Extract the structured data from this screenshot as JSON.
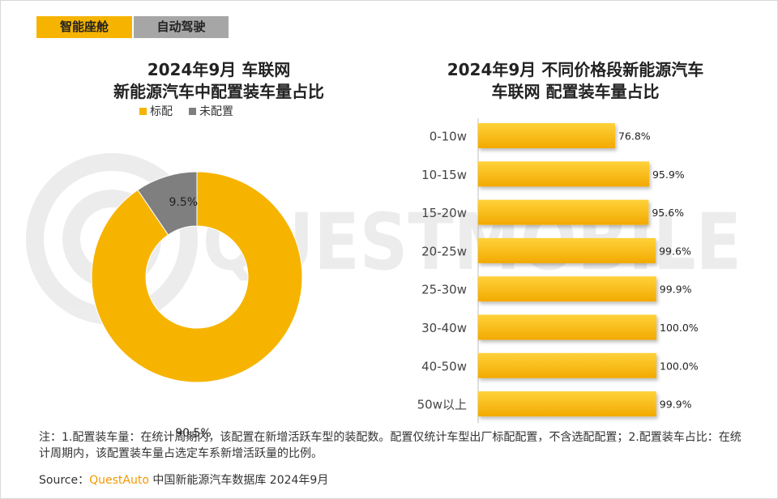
{
  "tabs": [
    {
      "label": "智能座舱",
      "active": true
    },
    {
      "label": "自动驾驶",
      "active": false
    }
  ],
  "watermark": "QUESTMOBILE",
  "colors": {
    "accent": "#f6b400",
    "gray": "#7f7f7f",
    "tab_inactive": "#a6a6a6",
    "brand": "#f39800"
  },
  "chart_data": [
    {
      "type": "pie",
      "title_line1": "2024年9月 车联网",
      "title_line2": "新能源汽车中配置装车量占比",
      "legend_position": "top",
      "slices": [
        {
          "name": "标配",
          "value": 90.5,
          "label": "90.5%",
          "color": "#f6b400"
        },
        {
          "name": "未配置",
          "value": 9.5,
          "label": "9.5%",
          "color": "#7f7f7f"
        }
      ]
    },
    {
      "type": "bar",
      "orientation": "horizontal",
      "title_line1": "2024年9月 不同价格段新能源汽车",
      "title_line2": "车联网 配置装车量占比",
      "categories": [
        "0-10w",
        "10-15w",
        "15-20w",
        "20-25w",
        "25-30w",
        "30-40w",
        "40-50w",
        "50w以上"
      ],
      "values": [
        76.8,
        95.9,
        95.6,
        99.6,
        99.9,
        100.0,
        100.0,
        99.9
      ],
      "labels": [
        "76.8%",
        "95.9%",
        "95.6%",
        "99.6%",
        "99.9%",
        "100.0%",
        "100.0%",
        "99.9%"
      ],
      "xlim": [
        0,
        100
      ]
    }
  ],
  "footer": {
    "note": "注：1.配置装车量：在统计周期内，该配置在新增活跃车型的装配数。配置仅统计车型出厂标配配置，不含选配配置；2.配置装车占比：在统计周期内，该配置装车量占选定车系新增活跃量的比例。",
    "source_prefix": "Source：",
    "source_brand": "QuestAuto",
    "source_text": " 中国新能源汽车数据库 2024年9月"
  }
}
